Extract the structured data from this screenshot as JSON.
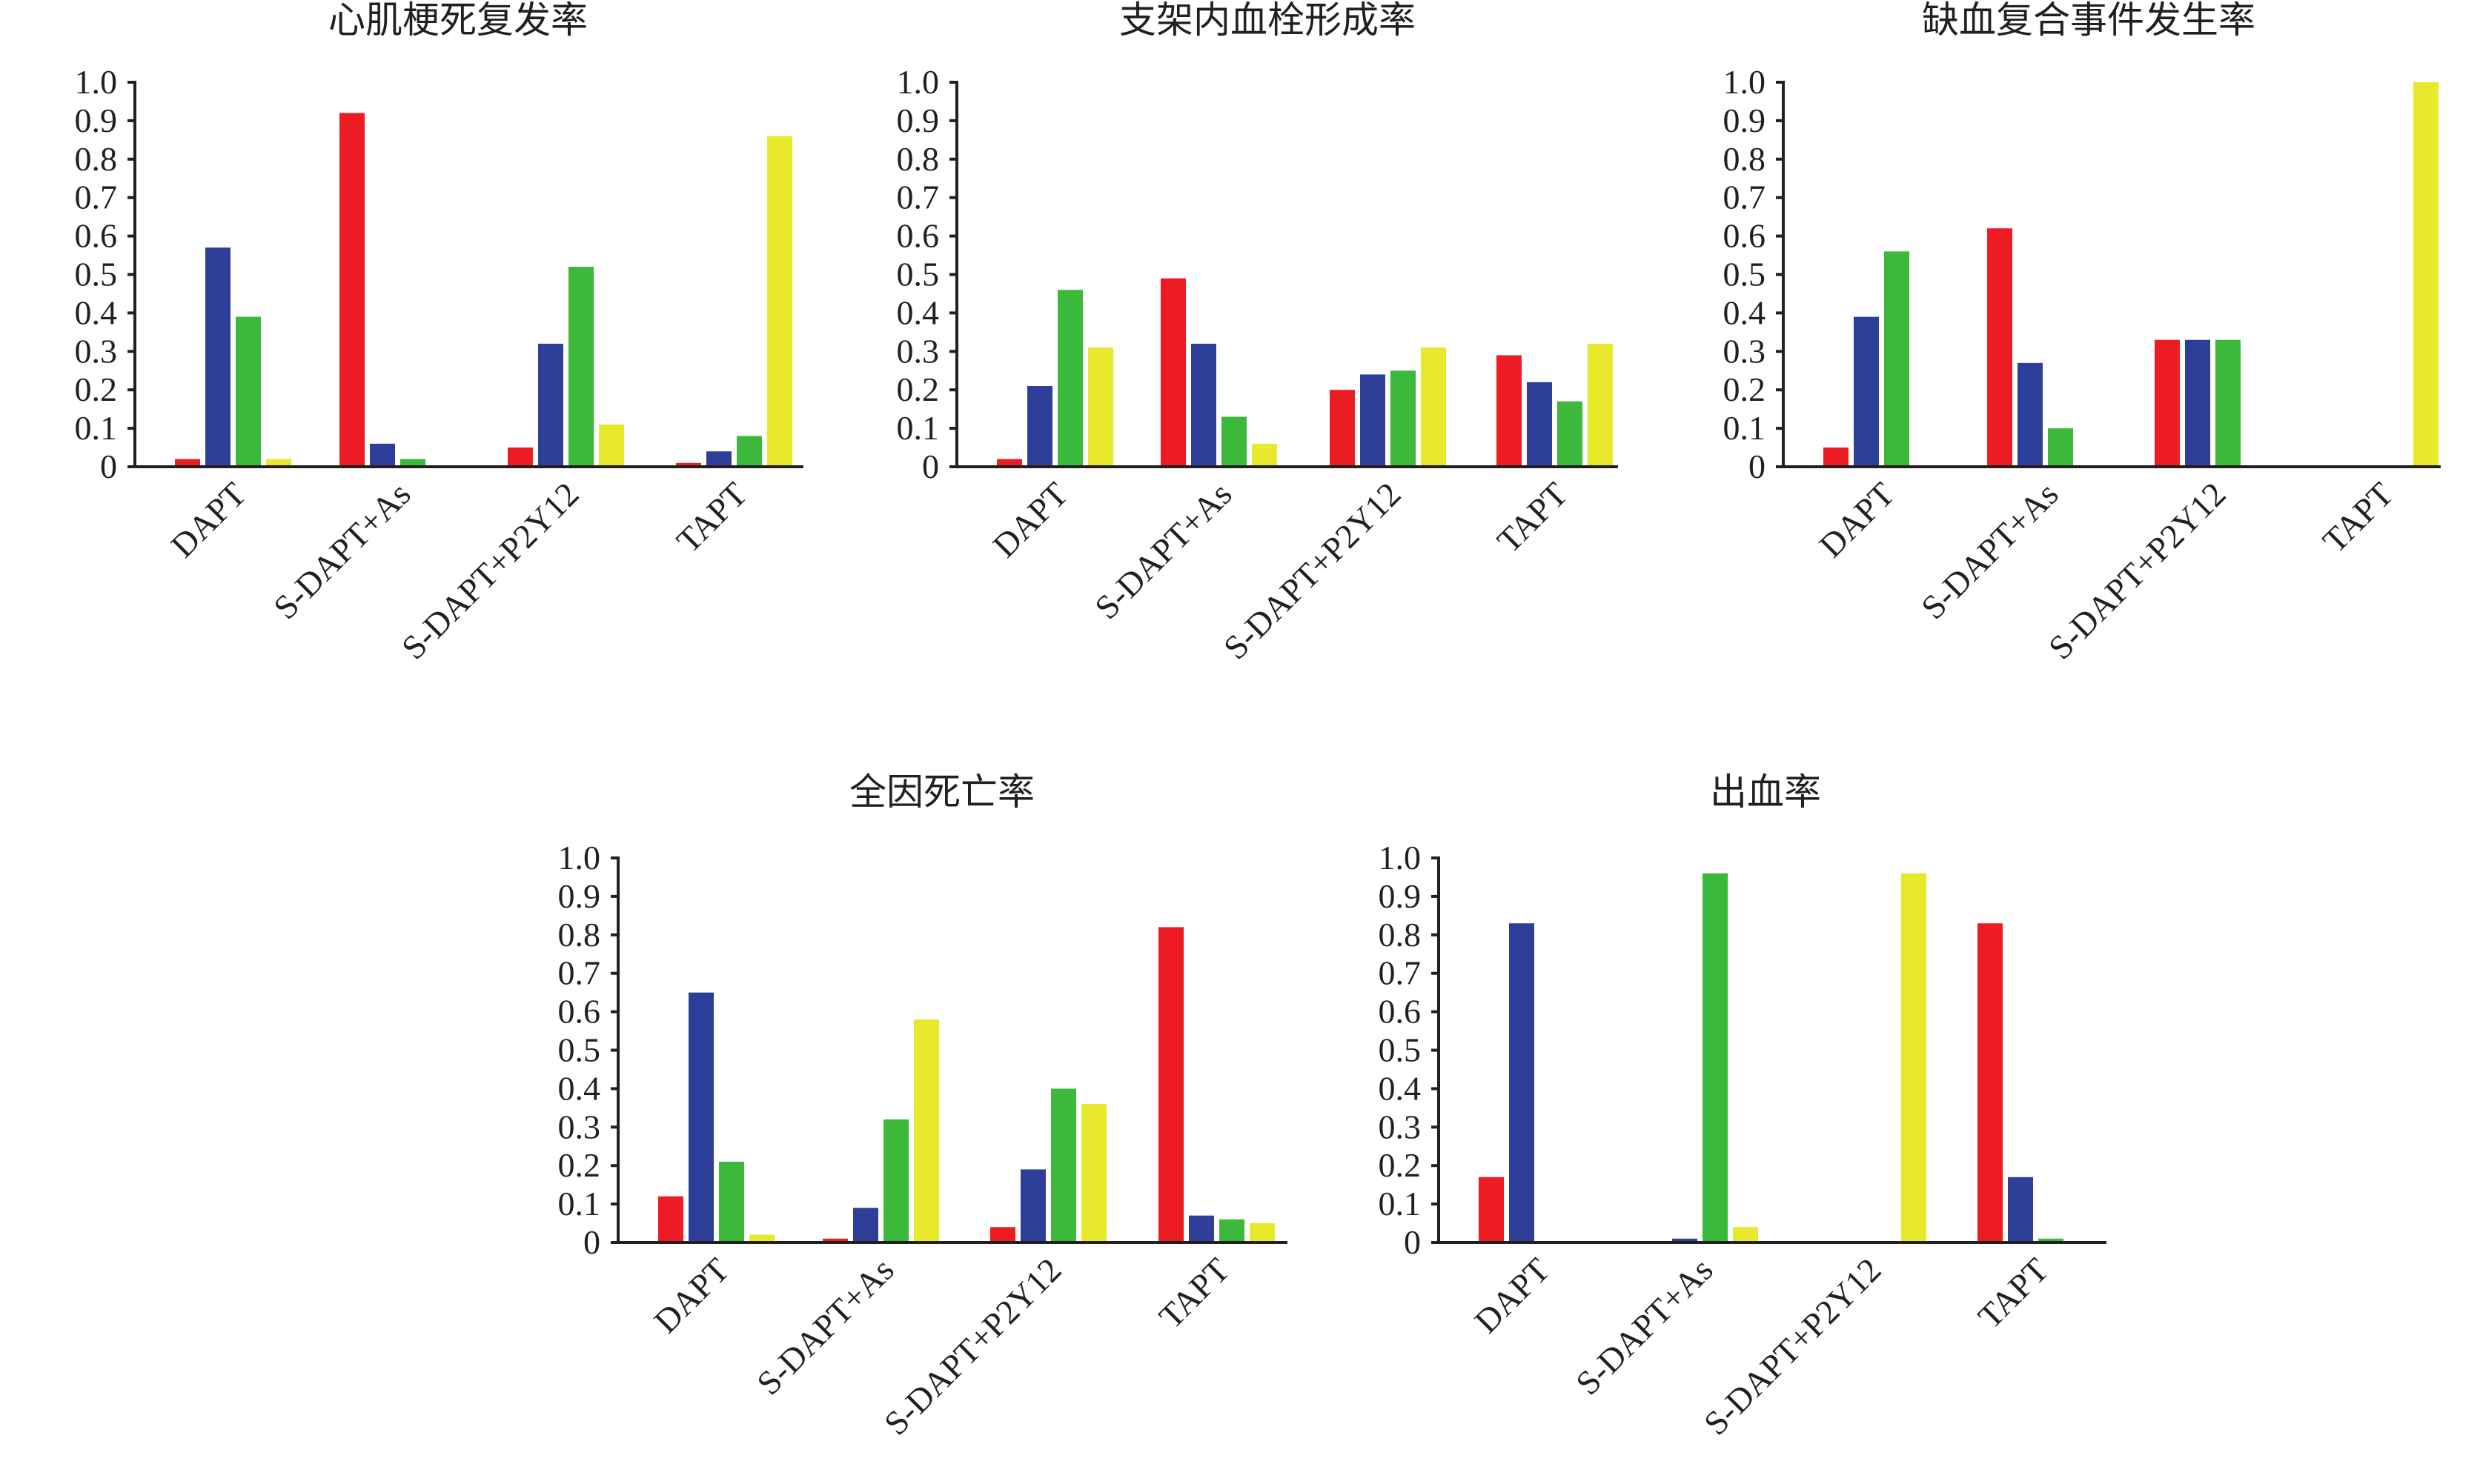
{
  "colors": [
    "#ed1c24",
    "#2e3f99",
    "#3cb83a",
    "#e8e82c"
  ],
  "chart_data": [
    {
      "type": "bar",
      "title": "心肌梗死复发率",
      "categories": [
        "DAPT",
        "S-DAPT+As",
        "S-DAPT+P2Y12",
        "TAPT"
      ],
      "yticks": [
        "0",
        "0.1",
        "0.2",
        "0.3",
        "0.4",
        "0.5",
        "0.6",
        "0.7",
        "0.8",
        "0.9",
        "1.0"
      ],
      "ylim": [
        0,
        1.0
      ],
      "series": [
        {
          "values": [
            0.02,
            0.92,
            0.05,
            0.01
          ]
        },
        {
          "values": [
            0.57,
            0.06,
            0.32,
            0.04
          ]
        },
        {
          "values": [
            0.39,
            0.02,
            0.52,
            0.08
          ]
        },
        {
          "values": [
            0.02,
            0.0,
            0.11,
            0.86
          ]
        }
      ]
    },
    {
      "type": "bar",
      "title": "支架内血栓形成率",
      "categories": [
        "DAPT",
        "S-DAPT+As",
        "S-DAPT+P2Y12",
        "TAPT"
      ],
      "yticks": [
        "0",
        "0.1",
        "0.2",
        "0.3",
        "0.4",
        "0.5",
        "0.6",
        "0.7",
        "0.8",
        "0.9",
        "1.0"
      ],
      "ylim": [
        0,
        1.0
      ],
      "series": [
        {
          "values": [
            0.02,
            0.49,
            0.2,
            0.29
          ]
        },
        {
          "values": [
            0.21,
            0.32,
            0.24,
            0.22
          ]
        },
        {
          "values": [
            0.46,
            0.13,
            0.25,
            0.17
          ]
        },
        {
          "values": [
            0.31,
            0.06,
            0.31,
            0.32
          ]
        }
      ]
    },
    {
      "type": "bar",
      "title": "缺血复合事件发生率",
      "categories": [
        "DAPT",
        "S-DAPT+As",
        "S-DAPT+P2Y12",
        "TAPT"
      ],
      "yticks": [
        "0",
        "0.1",
        "0.2",
        "0.3",
        "0.4",
        "0.5",
        "0.6",
        "0.7",
        "0.8",
        "0.9",
        "1.0"
      ],
      "ylim": [
        0,
        1.0
      ],
      "series": [
        {
          "values": [
            0.05,
            0.62,
            0.33,
            0.0
          ]
        },
        {
          "values": [
            0.39,
            0.27,
            0.33,
            0.0
          ]
        },
        {
          "values": [
            0.56,
            0.1,
            0.33,
            0.0
          ]
        },
        {
          "values": [
            0.0,
            0.0,
            0.0,
            1.0
          ]
        }
      ]
    },
    {
      "type": "bar",
      "title": "全因死亡率",
      "categories": [
        "DAPT",
        "S-DAPT+As",
        "S-DAPT+P2Y12",
        "TAPT"
      ],
      "yticks": [
        "0",
        "0.1",
        "0.2",
        "0.3",
        "0.4",
        "0.5",
        "0.6",
        "0.7",
        "0.8",
        "0.9",
        "1.0"
      ],
      "ylim": [
        0,
        1.0
      ],
      "series": [
        {
          "values": [
            0.12,
            0.01,
            0.04,
            0.82
          ]
        },
        {
          "values": [
            0.65,
            0.09,
            0.19,
            0.07
          ]
        },
        {
          "values": [
            0.21,
            0.32,
            0.4,
            0.06
          ]
        },
        {
          "values": [
            0.02,
            0.58,
            0.36,
            0.05
          ]
        }
      ]
    },
    {
      "type": "bar",
      "title": "出血率",
      "categories": [
        "DAPT",
        "S-DAPT+As",
        "S-DAPT+P2Y12",
        "TAPT"
      ],
      "yticks": [
        "0",
        "0.1",
        "0.2",
        "0.3",
        "0.4",
        "0.5",
        "0.6",
        "0.7",
        "0.8",
        "0.9",
        "1.0"
      ],
      "ylim": [
        0,
        1.0
      ],
      "series": [
        {
          "values": [
            0.17,
            0.0,
            0.0,
            0.83
          ]
        },
        {
          "values": [
            0.83,
            0.01,
            0.0,
            0.17
          ]
        },
        {
          "values": [
            0.0,
            0.96,
            0.0,
            0.01
          ]
        },
        {
          "values": [
            0.0,
            0.04,
            0.96,
            0.0
          ]
        }
      ]
    }
  ]
}
